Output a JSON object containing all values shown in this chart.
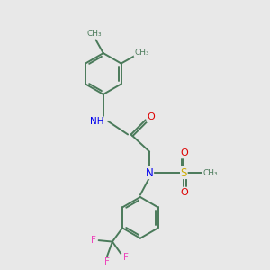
{
  "background_color": "#e8e8e8",
  "atom_colors": {
    "C": "#4a7a5a",
    "N": "#0000ee",
    "O": "#dd0000",
    "S": "#ccaa00",
    "F": "#ee44bb",
    "H": "#0000ee"
  },
  "bond_color": "#4a7a5a",
  "figsize": [
    3.0,
    3.0
  ],
  "dpi": 100,
  "xlim": [
    0,
    10
  ],
  "ylim": [
    0,
    10
  ]
}
